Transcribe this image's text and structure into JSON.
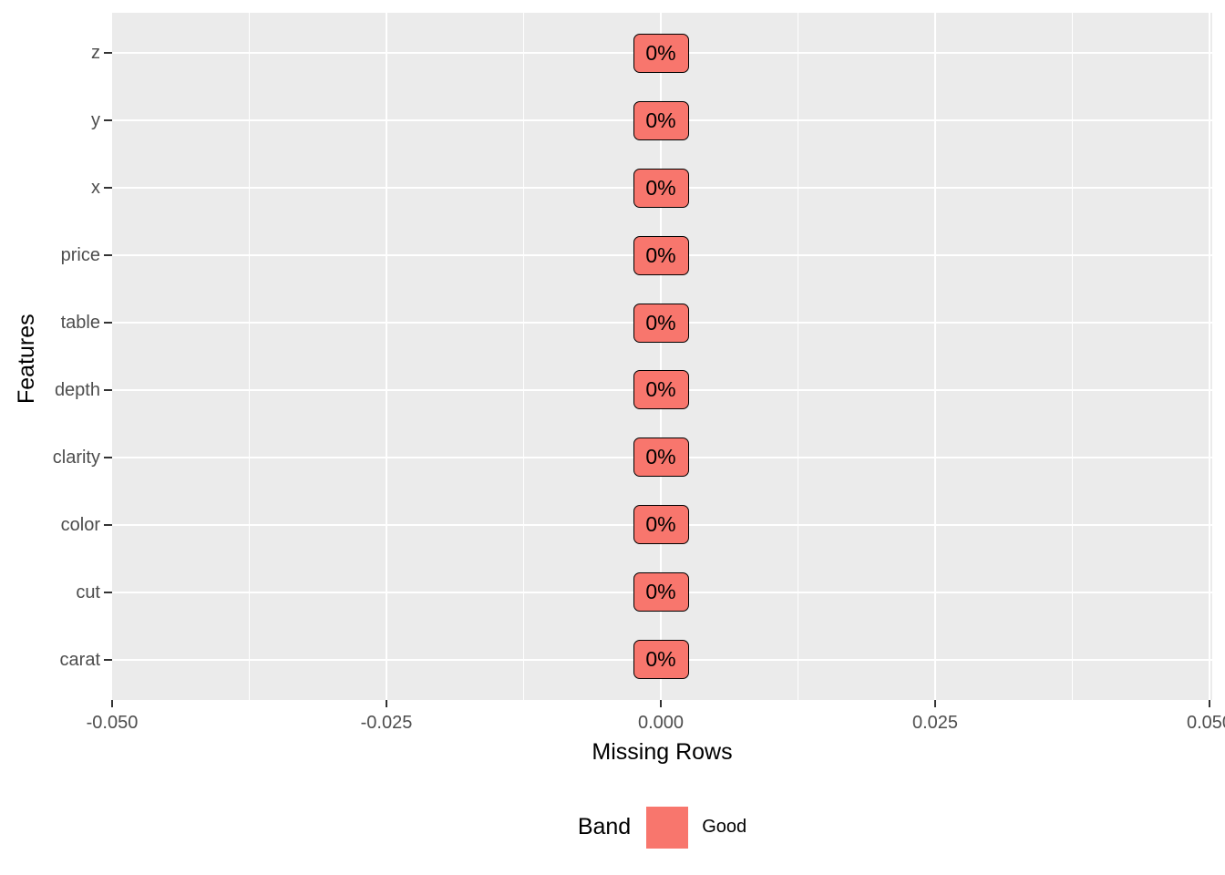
{
  "chart_data": {
    "type": "bar",
    "orientation": "horizontal",
    "title": "",
    "xlabel": "Missing Rows",
    "ylabel": "Features",
    "categories": [
      "z",
      "y",
      "x",
      "price",
      "table",
      "depth",
      "clarity",
      "color",
      "cut",
      "carat"
    ],
    "categories_order": "top-to-bottom",
    "values": [
      0,
      0,
      0,
      0,
      0,
      0,
      0,
      0,
      0,
      0
    ],
    "bar_labels": [
      "0%",
      "0%",
      "0%",
      "0%",
      "0%",
      "0%",
      "0%",
      "0%",
      "0%",
      "0%"
    ],
    "xlim": [
      -0.05,
      0.05
    ],
    "x_ticks": [
      -0.05,
      -0.025,
      0,
      0.025,
      0.05
    ],
    "x_tick_labels": [
      "-0.050",
      "-0.025",
      "0.000",
      "0.025",
      "0.050"
    ],
    "x_minor_ticks": [
      -0.0375,
      -0.0125,
      0.0125,
      0.0375
    ],
    "grid": true,
    "legend": {
      "title": "Band",
      "position": "bottom",
      "entries": [
        {
          "label": "Good",
          "color": "#F8766D"
        }
      ]
    }
  },
  "style": {
    "bar_fill": "#F8766D",
    "label_border": "#000000",
    "label_text": "#000000",
    "panel_bg": "#EBEBEB",
    "grid_color": "#FFFFFF",
    "axis_text_color": "#4D4D4D",
    "tick_color": "#333333",
    "title_color": "#000000"
  }
}
